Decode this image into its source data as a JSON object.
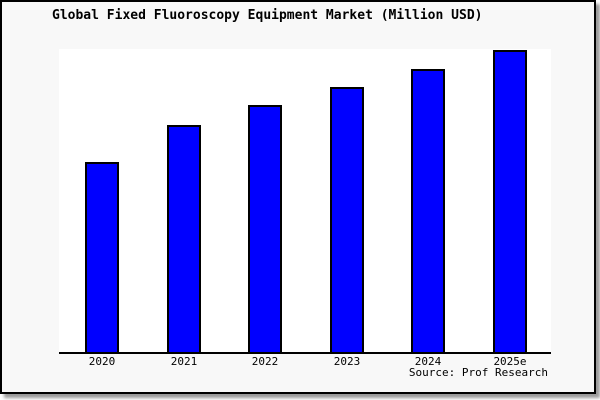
{
  "figure": {
    "colors": {
      "bar_fill": "#0000ff",
      "bar_border": "#000000",
      "figure_bg": "#f8f8f8",
      "plot_bg": "#ffffff",
      "frame": "#000000",
      "text": "#000000"
    }
  },
  "chart_data": {
    "type": "bar",
    "title": "Global Fixed Fluoroscopy Equipment Market (Million USD)",
    "categories": [
      "2020",
      "2021",
      "2022",
      "2023",
      "2024",
      "2025e"
    ],
    "values": [
      62.9,
      75.3,
      81.8,
      87.7,
      93.7,
      100
    ],
    "value_note": "No y-axis labels shown; values are bar heights as percent of the tallest bar (2025e = 100)",
    "xlabel": "",
    "ylabel": "",
    "ylim": [
      0,
      100
    ],
    "grid": false,
    "legend": false,
    "source": "Source: Prof Research"
  }
}
